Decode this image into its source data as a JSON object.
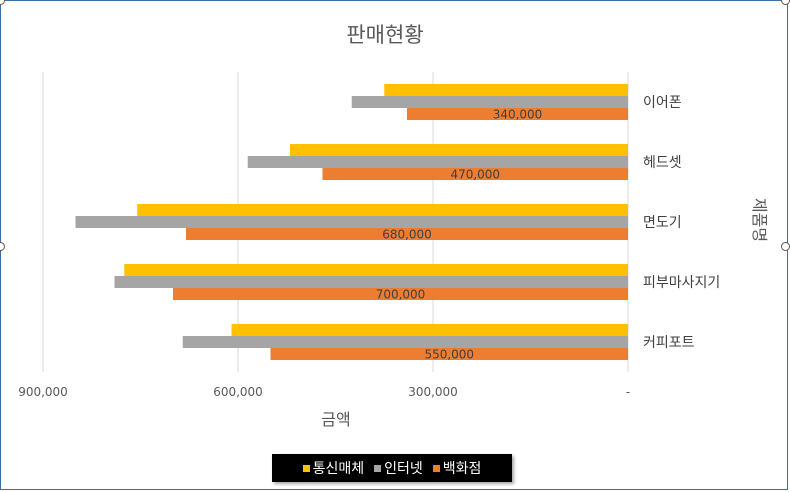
{
  "chart_data": {
    "type": "bar",
    "orientation": "horizontal",
    "x_reversed": true,
    "y_axis_side": "right",
    "title": "판매현황",
    "xlabel": "금액",
    "ylabel": "제품명",
    "categories": [
      "이어폰",
      "헤드셋",
      "면도기",
      "피부마사지기",
      "커피포트"
    ],
    "series": [
      {
        "name": "통신매체",
        "color": "#FFC000",
        "values": [
          375000,
          520000,
          755000,
          775000,
          610000
        ]
      },
      {
        "name": "인터넷",
        "color": "#A5A5A5",
        "values": [
          425000,
          585000,
          850000,
          790000,
          685000
        ]
      },
      {
        "name": "백화점",
        "color": "#ED7D31",
        "values": [
          340000,
          470000,
          680000,
          700000,
          550000
        ],
        "data_labels": [
          "340,000",
          "470,000",
          "680,000",
          "700,000",
          "550,000"
        ]
      }
    ],
    "xlim": [
      0,
      900000
    ],
    "x_ticks": [
      0,
      300000,
      600000,
      900000
    ],
    "x_tick_labels": [
      "-",
      "300,000",
      "600,000",
      "900,000"
    ],
    "grid": true,
    "legend_position": "bottom"
  }
}
